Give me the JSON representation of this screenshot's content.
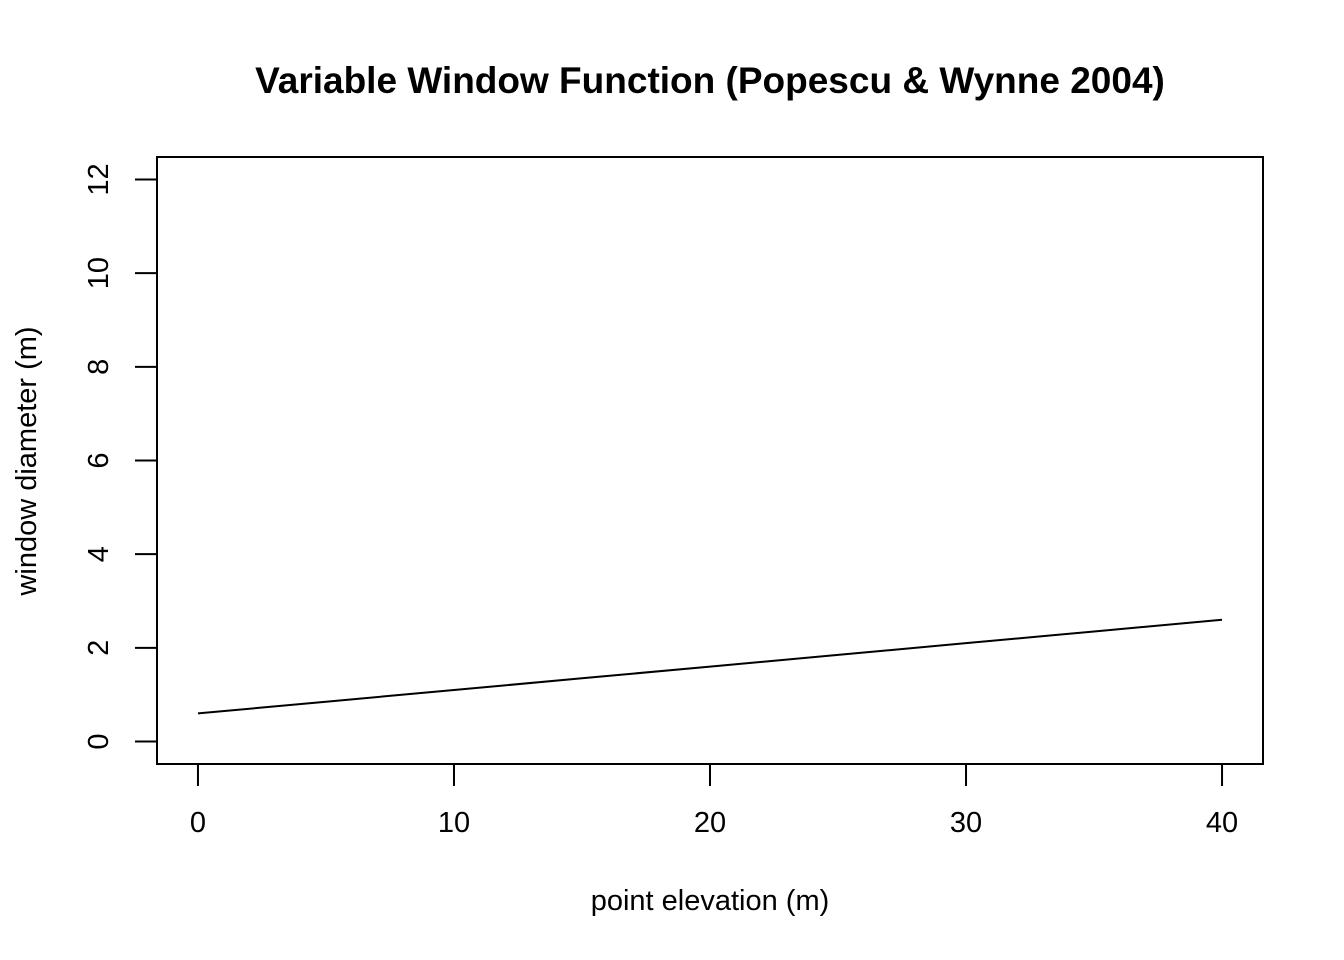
{
  "chart_data": {
    "type": "line",
    "title": "Variable Window Function (Popescu & Wynne 2004)",
    "xlabel": "point elevation (m)",
    "ylabel": "window diameter (m)",
    "xlim": [
      -1.6,
      41.6
    ],
    "ylim": [
      -0.48,
      12.48
    ],
    "x_ticks": [
      0,
      10,
      20,
      30,
      40
    ],
    "y_ticks": [
      0,
      2,
      4,
      6,
      8,
      10,
      12
    ],
    "x_tick_labels": [
      "0",
      "10",
      "20",
      "30",
      "40"
    ],
    "y_tick_labels": [
      "0",
      "2",
      "4",
      "6",
      "8",
      "10",
      "12"
    ],
    "grid": false,
    "series": [
      {
        "color": "#000000",
        "x": [
          0,
          5,
          10,
          15,
          20,
          25,
          30,
          35,
          40
        ],
        "y": [
          0.6,
          0.85,
          1.1,
          1.35,
          1.6,
          1.85,
          2.1,
          2.35,
          2.6
        ]
      }
    ]
  }
}
